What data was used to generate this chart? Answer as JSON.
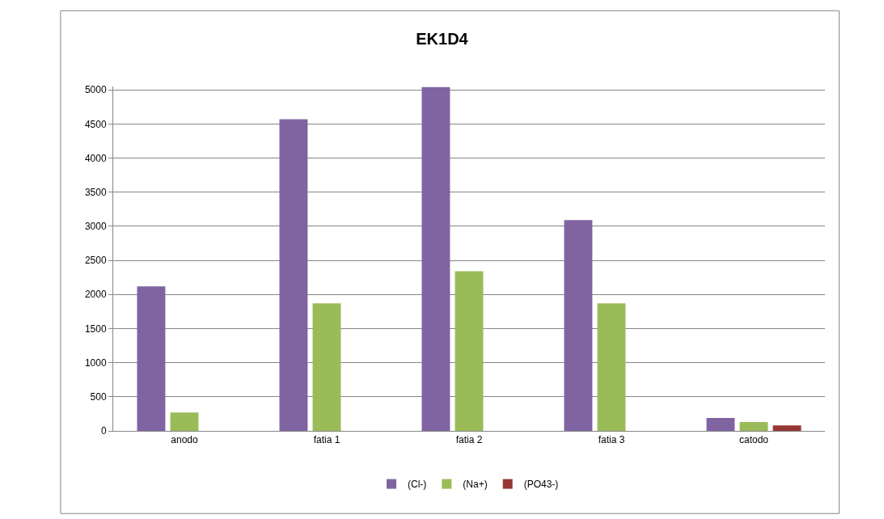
{
  "chart_data": {
    "type": "bar",
    "title": "EK1D4",
    "categories": [
      "anodo",
      "fatia 1",
      "fatia 2",
      "fatia 3",
      "catodo"
    ],
    "series": [
      {
        "name": "(Cl-)",
        "color": "#8064a2",
        "values": [
          2120,
          4570,
          5040,
          3090,
          190
        ]
      },
      {
        "name": "(Na+)",
        "color": "#9bbb59",
        "values": [
          270,
          1870,
          2340,
          1870,
          130
        ]
      },
      {
        "name": "(PO43-)",
        "color": "#953735",
        "values": [
          null,
          null,
          null,
          null,
          80
        ]
      }
    ],
    "ylim": [
      0,
      5050
    ],
    "yticks": [
      0,
      500,
      1000,
      1500,
      2000,
      2500,
      3000,
      3500,
      4000,
      4500,
      5000
    ],
    "grid": "y",
    "legend": "bottom"
  }
}
